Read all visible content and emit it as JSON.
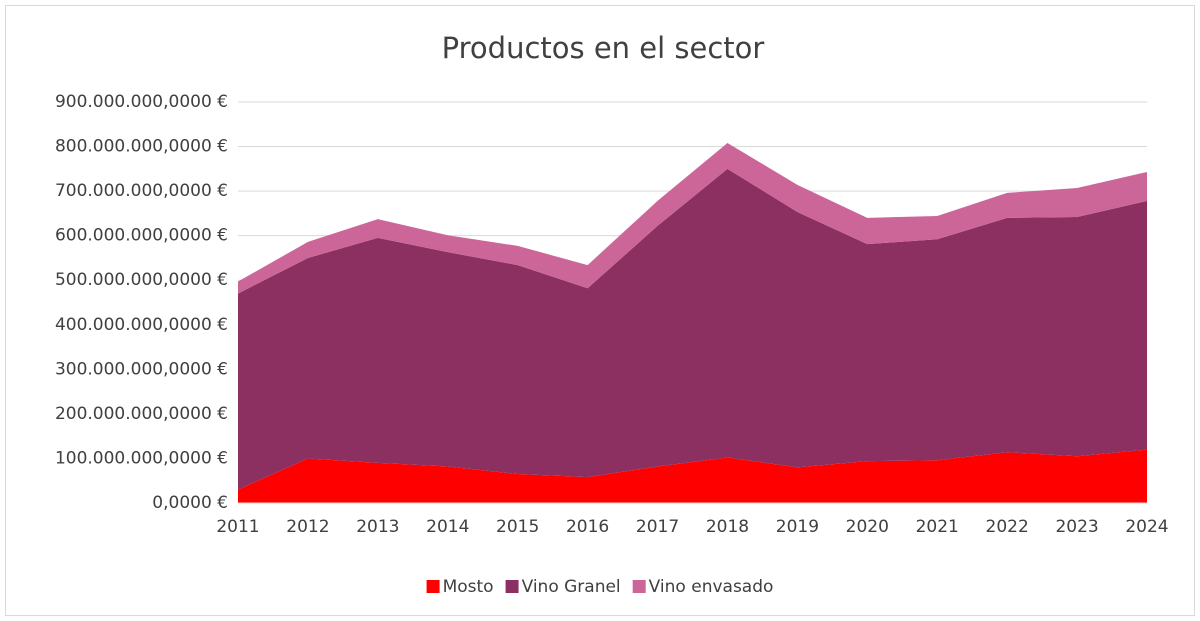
{
  "chart_data": {
    "type": "area",
    "stacked": true,
    "title": "Productos en el sector",
    "categories": [
      "2011",
      "2012",
      "2013",
      "2014",
      "2015",
      "2016",
      "2017",
      "2018",
      "2019",
      "2020",
      "2021",
      "2022",
      "2023",
      "2024"
    ],
    "series": [
      {
        "name": "Mosto",
        "color": "#ff0000",
        "values": [
          30000000,
          100000000,
          90000000,
          82000000,
          65000000,
          58000000,
          82000000,
          102000000,
          80000000,
          94000000,
          96000000,
          114000000,
          105000000,
          120000000
        ]
      },
      {
        "name": "Vino Granel",
        "color": "#8b3060",
        "values": [
          440000000,
          450000000,
          505000000,
          481000000,
          469000000,
          424000000,
          540000000,
          648000000,
          573000000,
          487000000,
          496000000,
          526000000,
          537000000,
          558000000
        ]
      },
      {
        "name": "Vino envasado",
        "color": "#cc6699",
        "values": [
          27000000,
          36000000,
          42000000,
          38000000,
          43000000,
          52000000,
          56000000,
          58000000,
          61000000,
          59000000,
          52000000,
          56000000,
          65000000,
          65000000
        ]
      }
    ],
    "ylim": [
      0,
      900000000
    ],
    "yticks": [
      {
        "value": 0,
        "label": "0,0000 €"
      },
      {
        "value": 100000000,
        "label": "100.000.000,0000 €"
      },
      {
        "value": 200000000,
        "label": "200.000.000,0000 €"
      },
      {
        "value": 300000000,
        "label": "300.000.000,0000 €"
      },
      {
        "value": 400000000,
        "label": "400.000.000,0000 €"
      },
      {
        "value": 500000000,
        "label": "500.000.000,0000 €"
      },
      {
        "value": 600000000,
        "label": "600.000.000,0000 €"
      },
      {
        "value": 700000000,
        "label": "700.000.000,0000 €"
      },
      {
        "value": 800000000,
        "label": "800.000.000,0000 €"
      },
      {
        "value": 900000000,
        "label": "900.000.000,0000 €"
      }
    ],
    "grid": true,
    "legend": "bottom"
  }
}
